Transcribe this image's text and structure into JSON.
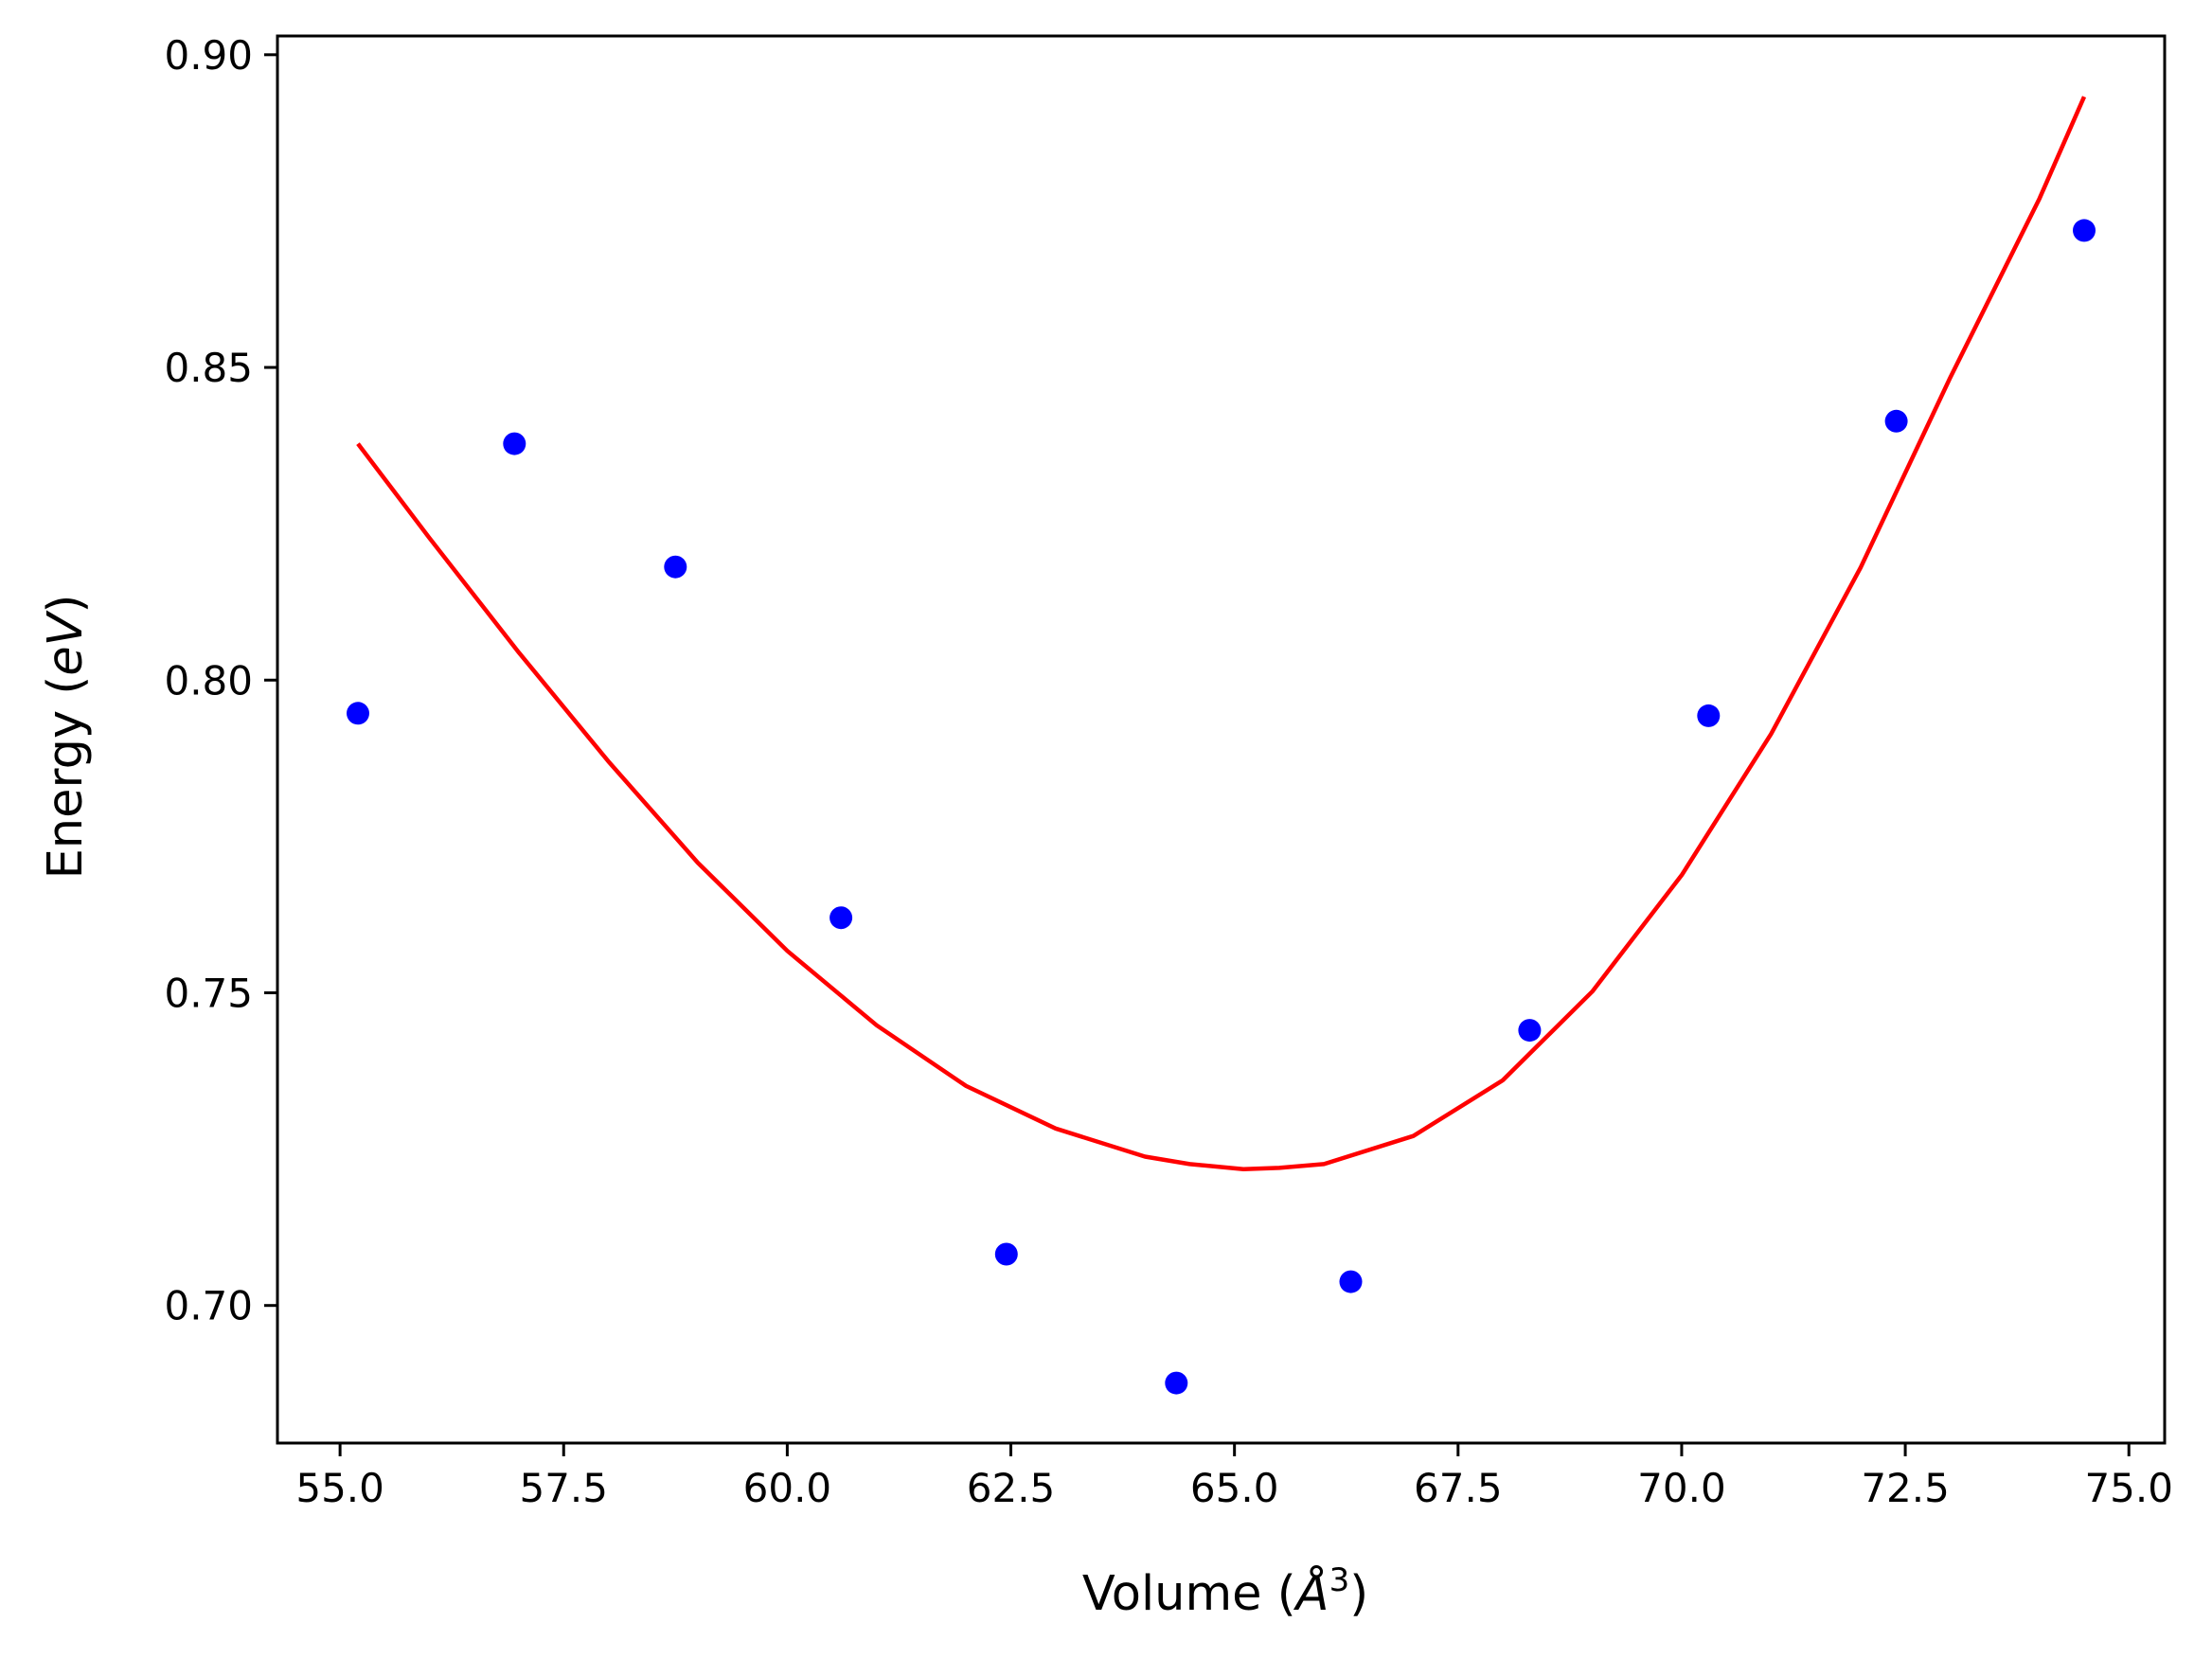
{
  "chart_data": {
    "type": "scatter",
    "title": "",
    "xlabel": {
      "prefix": "Volume (",
      "symbol": "Å",
      "superscript": "3",
      "suffix": ")"
    },
    "ylabel": {
      "prefix": "Energy (",
      "symbol": "eV",
      "suffix": ")"
    },
    "xlim": [
      54.3,
      75.4
    ],
    "ylim": [
      0.678,
      0.903
    ],
    "xticks": [
      55.0,
      57.5,
      60.0,
      62.5,
      65.0,
      67.5,
      70.0,
      72.5,
      75.0
    ],
    "xtick_labels": [
      "55.0",
      "57.5",
      "60.0",
      "62.5",
      "65.0",
      "67.5",
      "70.0",
      "72.5",
      "75.0"
    ],
    "yticks": [
      0.7,
      0.75,
      0.8,
      0.85,
      0.9
    ],
    "ytick_labels": [
      "0.70",
      "0.75",
      "0.80",
      "0.85",
      "0.90"
    ],
    "grid": false,
    "series": [
      {
        "kind": "scatter",
        "color": "#0000ff",
        "x": [
          55.2,
          56.95,
          58.75,
          60.6,
          62.45,
          64.35,
          66.3,
          68.3,
          70.3,
          72.4,
          74.5
        ],
        "y": [
          0.7947,
          0.8378,
          0.8181,
          0.762,
          0.7082,
          0.6876,
          0.7038,
          0.744,
          0.7943,
          0.8414,
          0.8719
        ]
      },
      {
        "kind": "line",
        "color": "#ff0000",
        "x": [
          55.2,
          56.0,
          57.0,
          58.0,
          59.0,
          60.0,
          61.0,
          62.0,
          63.0,
          64.0,
          64.5,
          65.1,
          65.5,
          66.0,
          67.0,
          68.0,
          69.0,
          70.0,
          71.0,
          72.0,
          73.0,
          74.0,
          74.5
        ],
        "y": [
          0.8378,
          0.8227,
          0.8044,
          0.787,
          0.7708,
          0.7567,
          0.7448,
          0.7351,
          0.7283,
          0.7238,
          0.7226,
          0.7218,
          0.722,
          0.7226,
          0.7271,
          0.736,
          0.7502,
          0.7688,
          0.7914,
          0.818,
          0.8483,
          0.877,
          0.8933
        ]
      }
    ]
  }
}
